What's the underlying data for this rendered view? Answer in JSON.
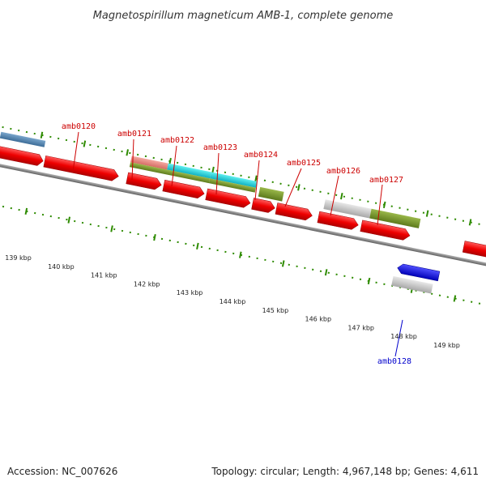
{
  "title": "Magnetospirillum magneticum AMB-1, complete genome",
  "footer": {
    "accession": "Accession: NC_007626",
    "topology": "Topology: circular; Length: 4,967,148 bp; Genes: 4,611"
  },
  "colors": {
    "forward_label": "#cc0000",
    "reverse_label": "#0000cc",
    "tick": "#2e8b00",
    "backbone": "#808080"
  },
  "ticks": [
    "139 kbp",
    "140 kbp",
    "141 kbp",
    "142 kbp",
    "143 kbp",
    "144 kbp",
    "145 kbp",
    "146 kbp",
    "147 kbp",
    "148 kbp",
    "149 kbp"
  ],
  "gene_labels": [
    {
      "text": "amb0120",
      "strand": "forward"
    },
    {
      "text": "amb0121",
      "strand": "forward"
    },
    {
      "text": "amb0122",
      "strand": "forward"
    },
    {
      "text": "amb0123",
      "strand": "forward"
    },
    {
      "text": "amb0124",
      "strand": "forward"
    },
    {
      "text": "amb0125",
      "strand": "forward"
    },
    {
      "text": "amb0126",
      "strand": "forward"
    },
    {
      "text": "amb0127",
      "strand": "forward"
    },
    {
      "text": "amb0128",
      "strand": "reverse"
    }
  ]
}
